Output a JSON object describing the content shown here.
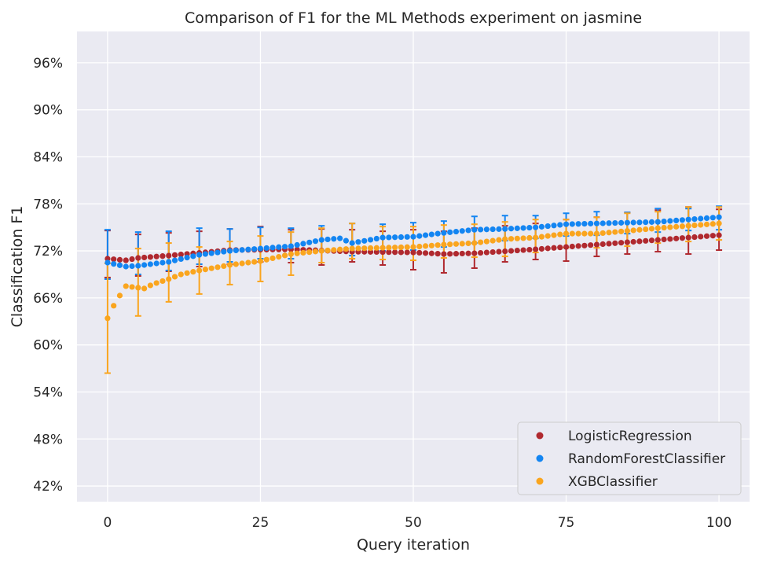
{
  "chart_data": {
    "type": "scatter",
    "title": "Comparison of F1 for the ML Methods experiment on jasmine",
    "xlabel": "Query iteration",
    "ylabel": "Classification F1",
    "xlim": [
      -5,
      105
    ],
    "ylim": [
      0.4,
      1.0
    ],
    "xticks": [
      0,
      25,
      50,
      75,
      100
    ],
    "xtick_labels": [
      "0",
      "25",
      "50",
      "75",
      "100"
    ],
    "yticks": [
      0.42,
      0.48,
      0.54,
      0.6,
      0.66,
      0.72,
      0.78,
      0.84,
      0.9,
      0.96
    ],
    "ytick_labels": [
      "42%",
      "48%",
      "54%",
      "60%",
      "66%",
      "72%",
      "78%",
      "84%",
      "90%",
      "96%"
    ],
    "grid": true,
    "background": "#eaeaf2",
    "legend_position": "lower-right",
    "error_bar_every": 5,
    "series": [
      {
        "name": "LogisticRegression",
        "color": "#b0292f",
        "anchors": [
          [
            0,
            0.71
          ],
          [
            3,
            0.708
          ],
          [
            5,
            0.711
          ],
          [
            10,
            0.714
          ],
          [
            20,
            0.721
          ],
          [
            30,
            0.722
          ],
          [
            40,
            0.719
          ],
          [
            50,
            0.718
          ],
          [
            55,
            0.716
          ],
          [
            60,
            0.717
          ],
          [
            70,
            0.722
          ],
          [
            80,
            0.728
          ],
          [
            90,
            0.734
          ],
          [
            100,
            0.74
          ]
        ],
        "errors": [
          [
            0,
            0.686,
            0.746
          ],
          [
            5,
            0.688,
            0.741
          ],
          [
            10,
            0.694,
            0.743
          ],
          [
            15,
            0.7,
            0.745
          ],
          [
            20,
            0.703,
            0.748
          ],
          [
            25,
            0.706,
            0.751
          ],
          [
            30,
            0.705,
            0.747
          ],
          [
            35,
            0.702,
            0.748
          ],
          [
            40,
            0.706,
            0.747
          ],
          [
            45,
            0.702,
            0.745
          ],
          [
            50,
            0.696,
            0.747
          ],
          [
            55,
            0.692,
            0.745
          ],
          [
            60,
            0.698,
            0.749
          ],
          [
            65,
            0.706,
            0.752
          ],
          [
            70,
            0.709,
            0.755
          ],
          [
            75,
            0.707,
            0.76
          ],
          [
            80,
            0.713,
            0.763
          ],
          [
            85,
            0.716,
            0.769
          ],
          [
            90,
            0.719,
            0.772
          ],
          [
            95,
            0.716,
            0.776
          ],
          [
            100,
            0.721,
            0.773
          ]
        ]
      },
      {
        "name": "RandomForestClassifier",
        "color": "#1385f2",
        "anchors": [
          [
            0,
            0.705
          ],
          [
            3,
            0.7
          ],
          [
            5,
            0.701
          ],
          [
            8,
            0.704
          ],
          [
            10,
            0.706
          ],
          [
            15,
            0.715
          ],
          [
            20,
            0.72
          ],
          [
            25,
            0.723
          ],
          [
            30,
            0.726
          ],
          [
            35,
            0.734
          ],
          [
            38,
            0.736
          ],
          [
            40,
            0.73
          ],
          [
            45,
            0.737
          ],
          [
            50,
            0.738
          ],
          [
            55,
            0.743
          ],
          [
            60,
            0.747
          ],
          [
            65,
            0.748
          ],
          [
            70,
            0.75
          ],
          [
            75,
            0.754
          ],
          [
            80,
            0.755
          ],
          [
            90,
            0.757
          ],
          [
            100,
            0.763
          ]
        ],
        "errors": [
          [
            0,
            0.684,
            0.747
          ],
          [
            5,
            0.69,
            0.744
          ],
          [
            10,
            0.695,
            0.745
          ],
          [
            15,
            0.703,
            0.749
          ],
          [
            20,
            0.706,
            0.748
          ],
          [
            25,
            0.71,
            0.75
          ],
          [
            30,
            0.71,
            0.749
          ],
          [
            35,
            0.72,
            0.752
          ],
          [
            40,
            0.714,
            0.755
          ],
          [
            45,
            0.72,
            0.754
          ],
          [
            50,
            0.721,
            0.756
          ],
          [
            55,
            0.725,
            0.758
          ],
          [
            60,
            0.73,
            0.764
          ],
          [
            65,
            0.733,
            0.765
          ],
          [
            70,
            0.736,
            0.765
          ],
          [
            75,
            0.739,
            0.768
          ],
          [
            80,
            0.74,
            0.77
          ],
          [
            85,
            0.742,
            0.769
          ],
          [
            90,
            0.744,
            0.774
          ],
          [
            95,
            0.746,
            0.774
          ],
          [
            100,
            0.747,
            0.777
          ]
        ]
      },
      {
        "name": "XGBClassifier",
        "color": "#faa51e",
        "anchors": [
          [
            0,
            0.634
          ],
          [
            1,
            0.65
          ],
          [
            2,
            0.663
          ],
          [
            3,
            0.675
          ],
          [
            4,
            0.674
          ],
          [
            5,
            0.673
          ],
          [
            6,
            0.672
          ],
          [
            7,
            0.676
          ],
          [
            8,
            0.679
          ],
          [
            10,
            0.684
          ],
          [
            12,
            0.69
          ],
          [
            15,
            0.695
          ],
          [
            20,
            0.702
          ],
          [
            25,
            0.707
          ],
          [
            30,
            0.716
          ],
          [
            35,
            0.72
          ],
          [
            40,
            0.723
          ],
          [
            50,
            0.725
          ],
          [
            55,
            0.728
          ],
          [
            60,
            0.73
          ],
          [
            65,
            0.735
          ],
          [
            70,
            0.737
          ],
          [
            75,
            0.742
          ],
          [
            80,
            0.742
          ],
          [
            90,
            0.749
          ],
          [
            100,
            0.755
          ]
        ],
        "errors": [
          [
            0,
            0.564,
            0.704
          ],
          [
            5,
            0.637,
            0.723
          ],
          [
            10,
            0.655,
            0.73
          ],
          [
            15,
            0.665,
            0.725
          ],
          [
            20,
            0.677,
            0.732
          ],
          [
            25,
            0.681,
            0.739
          ],
          [
            30,
            0.689,
            0.744
          ],
          [
            35,
            0.705,
            0.749
          ],
          [
            40,
            0.71,
            0.755
          ],
          [
            45,
            0.709,
            0.751
          ],
          [
            50,
            0.708,
            0.751
          ],
          [
            55,
            0.711,
            0.753
          ],
          [
            60,
            0.712,
            0.754
          ],
          [
            65,
            0.713,
            0.757
          ],
          [
            70,
            0.718,
            0.76
          ],
          [
            75,
            0.724,
            0.76
          ],
          [
            80,
            0.724,
            0.763
          ],
          [
            85,
            0.726,
            0.768
          ],
          [
            90,
            0.73,
            0.77
          ],
          [
            95,
            0.732,
            0.776
          ],
          [
            100,
            0.734,
            0.776
          ]
        ]
      }
    ]
  }
}
